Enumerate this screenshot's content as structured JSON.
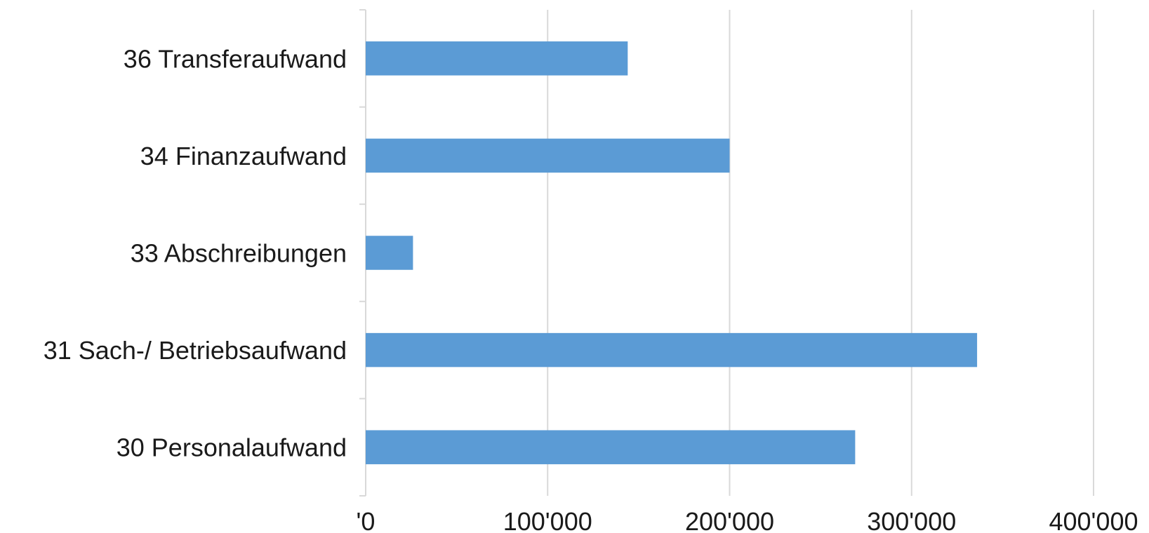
{
  "chart_data": {
    "type": "bar",
    "orientation": "horizontal",
    "categories": [
      "36 Transferaufwand",
      "34 Finanzaufwand",
      "33 Abschreibungen",
      "31 Sach-/ Betriebsaufwand",
      "30 Personalaufwand"
    ],
    "values": [
      144000,
      200000,
      26000,
      336000,
      269000
    ],
    "xlim": [
      0,
      400000
    ],
    "x_ticks": [
      0,
      100000,
      200000,
      300000,
      400000
    ],
    "x_tick_labels": [
      "'0",
      "100'000",
      "200'000",
      "300'000",
      "400'000"
    ],
    "grid": "vertical",
    "legend": "none",
    "bar_color": "#5b9bd5"
  }
}
